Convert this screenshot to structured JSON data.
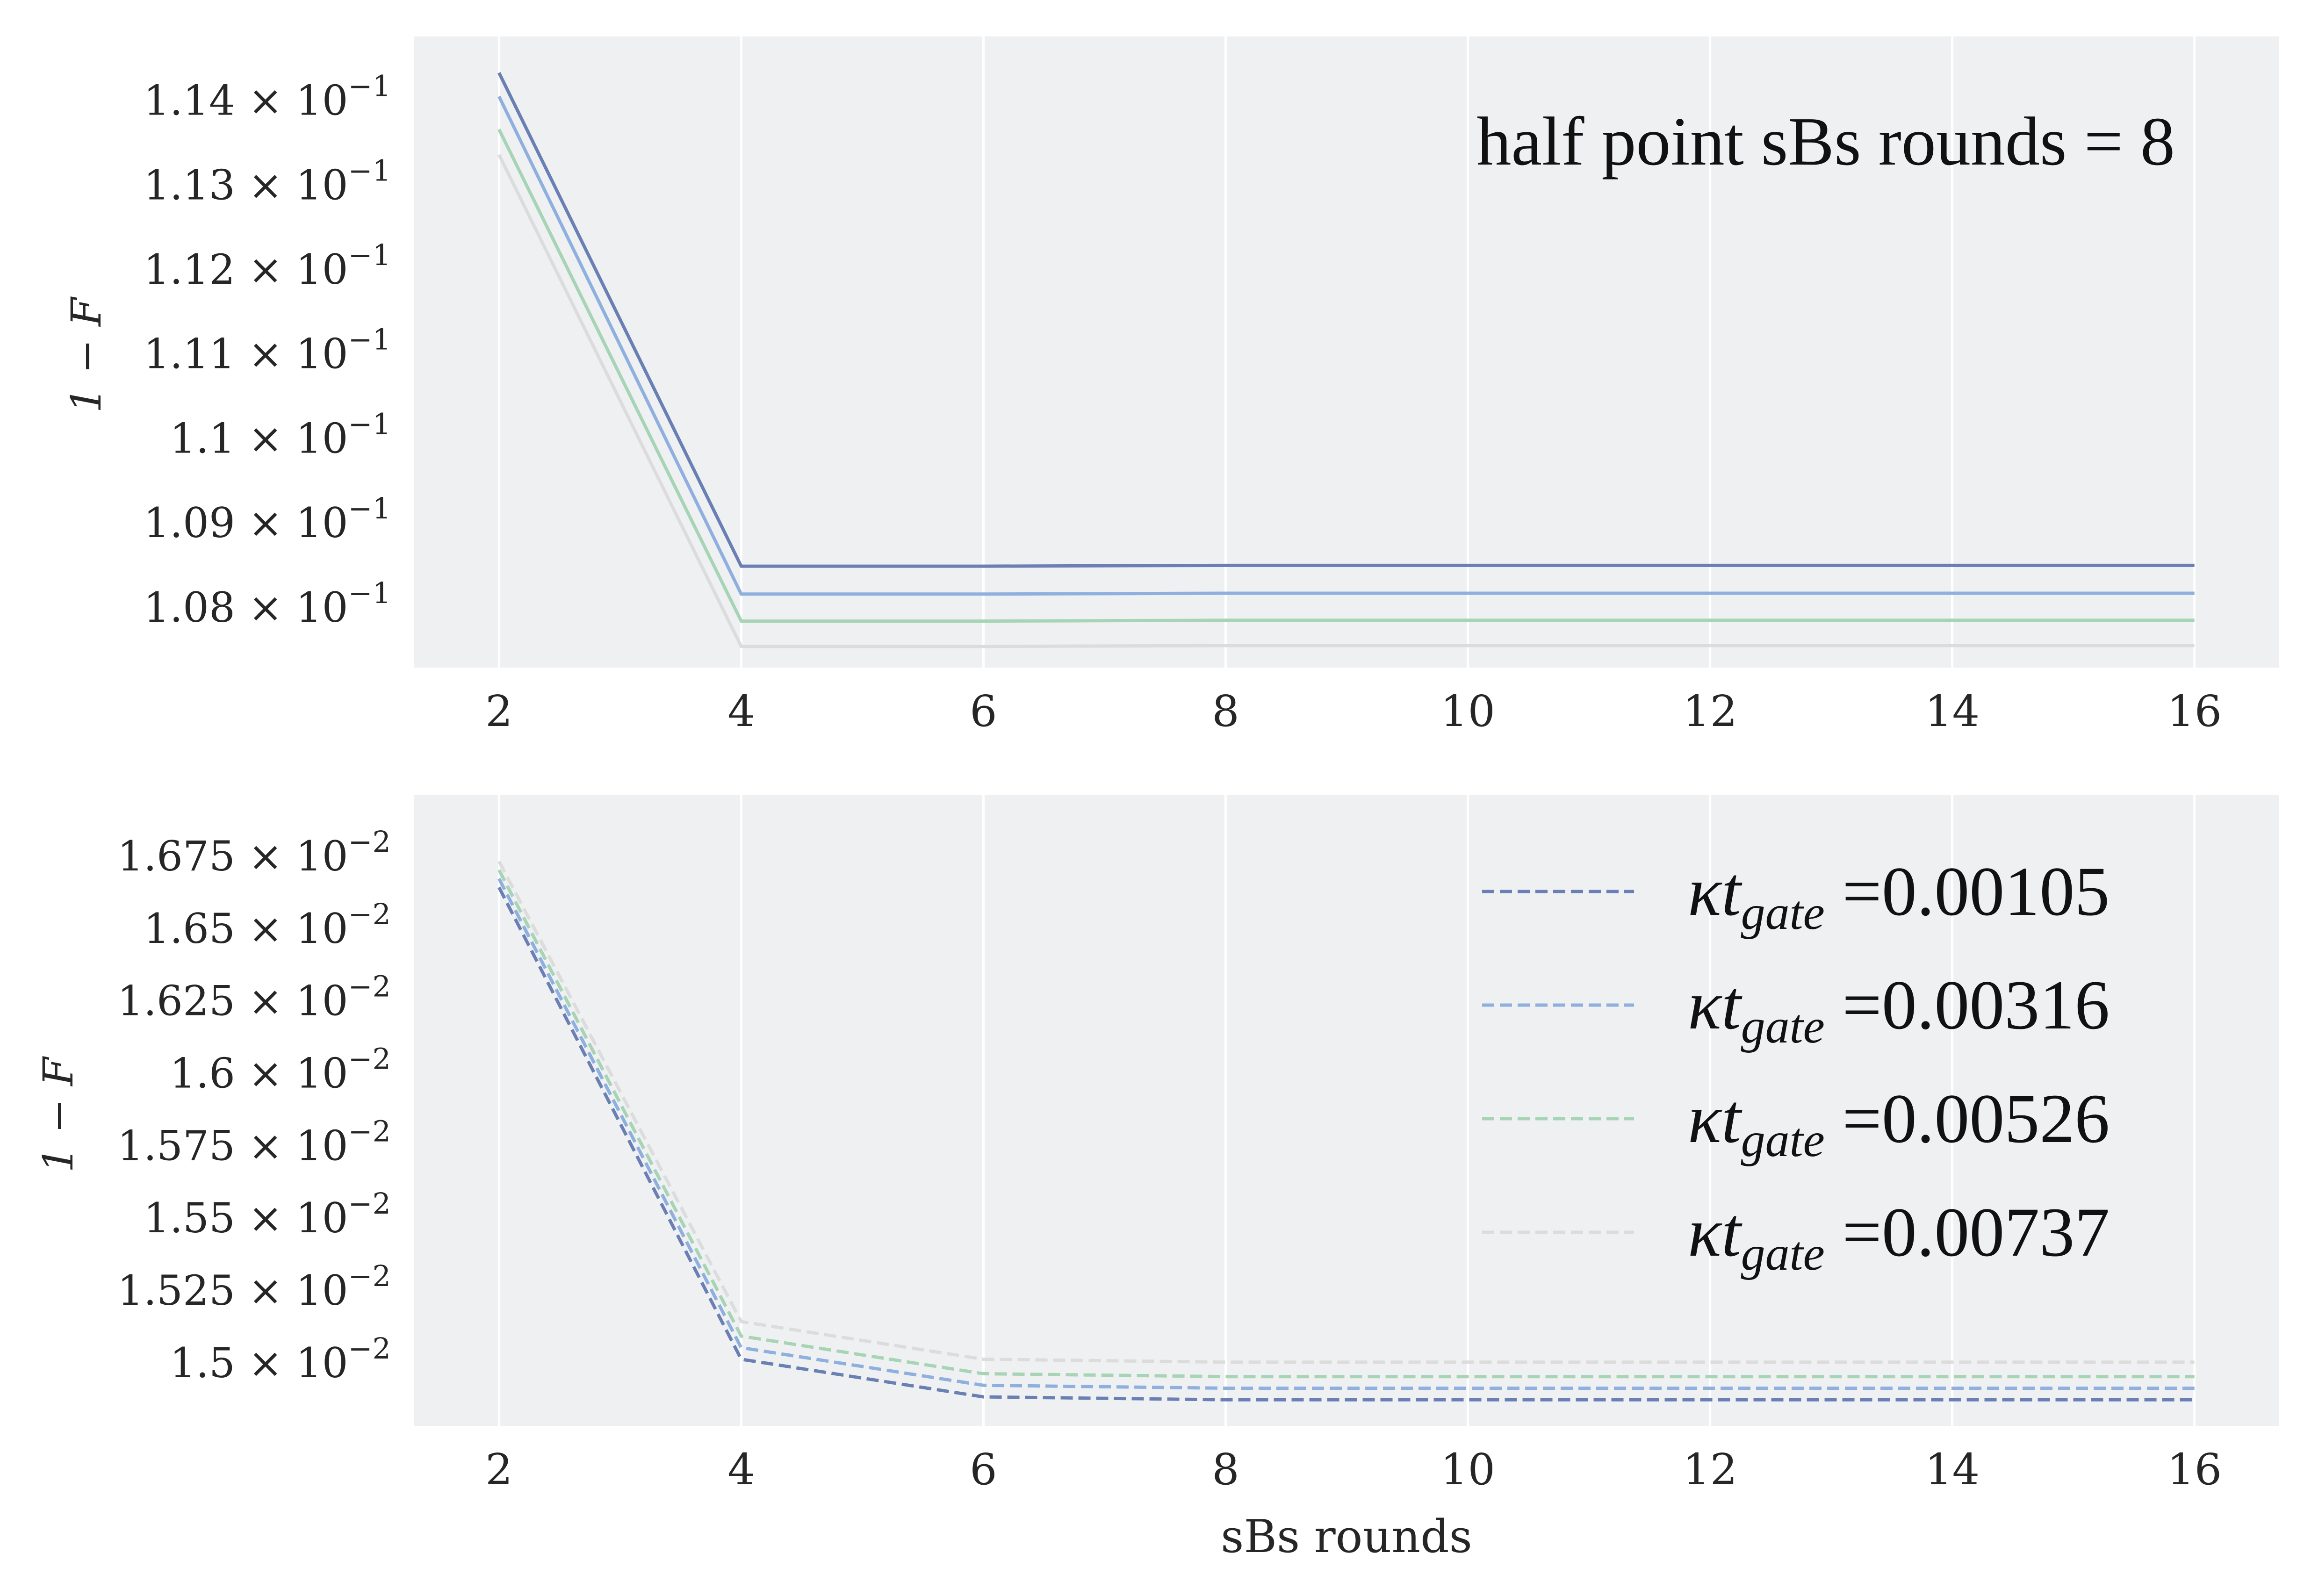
{
  "chart_data": [
    {
      "type": "line",
      "panel": "top",
      "annotation": "half point sBs rounds = 8",
      "ylabel": "1 − F",
      "xlabel": "",
      "x": [
        2,
        4,
        6,
        8,
        10,
        12,
        14,
        16
      ],
      "xticks": [
        "2",
        "4",
        "6",
        "8",
        "10",
        "12",
        "14",
        "16"
      ],
      "xlim": [
        1.3,
        16.7
      ],
      "ylim": [
        0.10728,
        0.11475
      ],
      "yticks": [
        {
          "value": 0.108,
          "mantissa": "1.08",
          "base": "10",
          "exp": "−1"
        },
        {
          "value": 0.109,
          "mantissa": "1.09",
          "base": "10",
          "exp": "−1"
        },
        {
          "value": 0.11,
          "mantissa": "1.1",
          "base": "10",
          "exp": "−1"
        },
        {
          "value": 0.111,
          "mantissa": "1.11",
          "base": "10",
          "exp": "−1"
        },
        {
          "value": 0.112,
          "mantissa": "1.12",
          "base": "10",
          "exp": "−1"
        },
        {
          "value": 0.113,
          "mantissa": "1.13",
          "base": "10",
          "exp": "−1"
        },
        {
          "value": 0.114,
          "mantissa": "1.14",
          "base": "10",
          "exp": "−1"
        }
      ],
      "grid": true,
      "line_style": "solid",
      "series": [
        {
          "color": "#6a7fb3",
          "values": [
            0.11432,
            0.10848,
            0.10848,
            0.10849,
            0.10849,
            0.10849,
            0.10849,
            0.10849
          ]
        },
        {
          "color": "#8fb0de",
          "values": [
            0.11404,
            0.10815,
            0.10815,
            0.10816,
            0.10816,
            0.10816,
            0.10816,
            0.10816
          ]
        },
        {
          "color": "#a7d4b5",
          "values": [
            0.11365,
            0.10783,
            0.10783,
            0.10784,
            0.10784,
            0.10784,
            0.10784,
            0.10784
          ]
        },
        {
          "color": "#dcdcdc",
          "values": [
            0.11335,
            0.10753,
            0.10753,
            0.10754,
            0.10754,
            0.10754,
            0.10754,
            0.10754
          ]
        }
      ]
    },
    {
      "type": "line",
      "panel": "bottom",
      "ylabel": "1 − F",
      "xlabel": "sBs rounds",
      "x": [
        2,
        4,
        6,
        8,
        10,
        12,
        14,
        16
      ],
      "xticks": [
        "2",
        "4",
        "6",
        "8",
        "10",
        "12",
        "14",
        "16"
      ],
      "xlim": [
        1.3,
        16.7
      ],
      "ylim": [
        0.01478,
        0.01696
      ],
      "yticks": [
        {
          "value": 0.015,
          "mantissa": "1.5",
          "base": "10",
          "exp": "−2"
        },
        {
          "value": 0.01525,
          "mantissa": "1.525",
          "base": "10",
          "exp": "−2"
        },
        {
          "value": 0.0155,
          "mantissa": "1.55",
          "base": "10",
          "exp": "−2"
        },
        {
          "value": 0.01575,
          "mantissa": "1.575",
          "base": "10",
          "exp": "−2"
        },
        {
          "value": 0.016,
          "mantissa": "1.6",
          "base": "10",
          "exp": "−2"
        },
        {
          "value": 0.01625,
          "mantissa": "1.625",
          "base": "10",
          "exp": "−2"
        },
        {
          "value": 0.0165,
          "mantissa": "1.65",
          "base": "10",
          "exp": "−2"
        },
        {
          "value": 0.01675,
          "mantissa": "1.675",
          "base": "10",
          "exp": "−2"
        }
      ],
      "grid": true,
      "line_style": "dashed",
      "legend_placement": "upper right",
      "series": [
        {
          "legend_var": "κt",
          "legend_sub": "gate",
          "legend_value": " =0.00105",
          "color": "#6a7fb3",
          "values": [
            0.01664,
            0.01501,
            0.01488,
            0.01487,
            0.01487,
            0.01487,
            0.01487,
            0.01487
          ]
        },
        {
          "legend_var": "κt",
          "legend_sub": "gate",
          "legend_value": " =0.00316",
          "color": "#8fb0de",
          "values": [
            0.01667,
            0.01505,
            0.01492,
            0.01491,
            0.01491,
            0.01491,
            0.01491,
            0.01491
          ]
        },
        {
          "legend_var": "κt",
          "legend_sub": "gate",
          "legend_value": " =0.00526",
          "color": "#a7d4b5",
          "values": [
            0.0167,
            0.01509,
            0.01496,
            0.01495,
            0.01495,
            0.01495,
            0.01495,
            0.01495
          ]
        },
        {
          "legend_var": "κt",
          "legend_sub": "gate",
          "legend_value": " =0.00737",
          "color": "#dcdcdc",
          "values": [
            0.01673,
            0.01514,
            0.01501,
            0.015,
            0.015,
            0.015,
            0.015,
            0.015
          ]
        }
      ]
    }
  ]
}
